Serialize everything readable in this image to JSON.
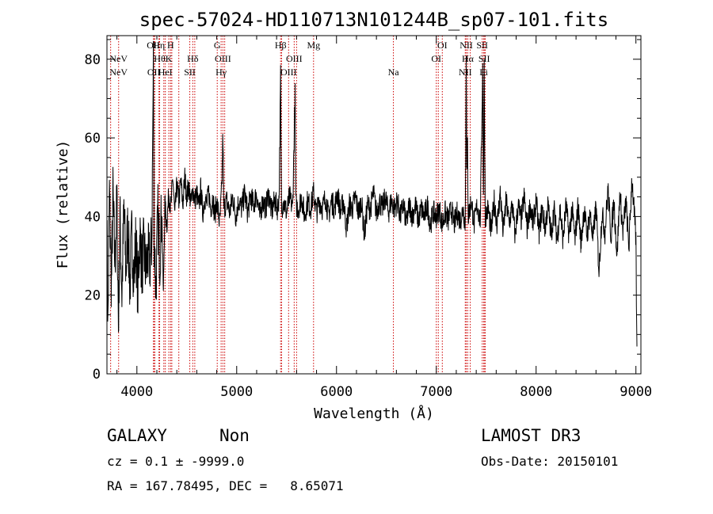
{
  "chart_data": {
    "type": "line",
    "title": "spec-57024-HD110713N101244B_sp07-101.fits",
    "xlabel": "Wavelength (Å)",
    "ylabel": "Flux (relative)",
    "xlim": [
      3700,
      9050
    ],
    "ylim": [
      0,
      86
    ],
    "x_ticks": [
      4000,
      5000,
      6000,
      7000,
      8000,
      9000
    ],
    "y_ticks": [
      0,
      20,
      40,
      60,
      80
    ],
    "grid": false,
    "line_color": "#000000",
    "marker_color": "#cc0000",
    "anchor_points": [
      [
        3700,
        38
      ],
      [
        3710,
        12
      ],
      [
        3725,
        46
      ],
      [
        3745,
        22
      ],
      [
        3760,
        45
      ],
      [
        3780,
        28
      ],
      [
        3800,
        44
      ],
      [
        3815,
        12
      ],
      [
        3830,
        40
      ],
      [
        3850,
        20
      ],
      [
        3870,
        42
      ],
      [
        3890,
        26
      ],
      [
        3910,
        38
      ],
      [
        3930,
        22
      ],
      [
        3950,
        36
      ],
      [
        3970,
        24
      ],
      [
        3990,
        34
      ],
      [
        4010,
        21
      ],
      [
        4030,
        36
      ],
      [
        4050,
        27
      ],
      [
        4070,
        32
      ],
      [
        4090,
        26
      ],
      [
        4110,
        30
      ],
      [
        4130,
        28
      ],
      [
        4150,
        34
      ],
      [
        4165,
        80
      ],
      [
        4172,
        36
      ],
      [
        4190,
        22
      ],
      [
        4210,
        40
      ],
      [
        4230,
        30
      ],
      [
        4250,
        42
      ],
      [
        4265,
        20
      ],
      [
        4280,
        43
      ],
      [
        4300,
        38
      ],
      [
        4320,
        46
      ],
      [
        4340,
        42
      ],
      [
        4360,
        50
      ],
      [
        4380,
        40
      ],
      [
        4400,
        48
      ],
      [
        4420,
        44
      ],
      [
        4440,
        49
      ],
      [
        4460,
        43
      ],
      [
        4480,
        50
      ],
      [
        4500,
        45
      ],
      [
        4520,
        48
      ],
      [
        4540,
        43
      ],
      [
        4560,
        47
      ],
      [
        4580,
        44
      ],
      [
        4600,
        46
      ],
      [
        4620,
        42
      ],
      [
        4640,
        47
      ],
      [
        4660,
        41
      ],
      [
        4680,
        45
      ],
      [
        4700,
        43
      ],
      [
        4720,
        46
      ],
      [
        4740,
        42
      ],
      [
        4760,
        45
      ],
      [
        4780,
        40
      ],
      [
        4800,
        44
      ],
      [
        4830,
        38
      ],
      [
        4850,
        47
      ],
      [
        4862,
        61
      ],
      [
        4870,
        42
      ],
      [
        4900,
        44
      ],
      [
        4930,
        41
      ],
      [
        4960,
        45
      ],
      [
        4990,
        40
      ],
      [
        5020,
        44
      ],
      [
        5050,
        42
      ],
      [
        5080,
        46
      ],
      [
        5110,
        41
      ],
      [
        5140,
        45
      ],
      [
        5170,
        43
      ],
      [
        5200,
        46
      ],
      [
        5230,
        40
      ],
      [
        5260,
        44
      ],
      [
        5290,
        42
      ],
      [
        5320,
        46
      ],
      [
        5350,
        41
      ],
      [
        5380,
        44
      ],
      [
        5410,
        42
      ],
      [
        5425,
        45
      ],
      [
        5440,
        76
      ],
      [
        5448,
        42
      ],
      [
        5470,
        44
      ],
      [
        5500,
        41
      ],
      [
        5530,
        45
      ],
      [
        5560,
        42
      ],
      [
        5585,
        71
      ],
      [
        5592,
        43
      ],
      [
        5620,
        42
      ],
      [
        5650,
        45
      ],
      [
        5680,
        40
      ],
      [
        5710,
        44
      ],
      [
        5740,
        42
      ],
      [
        5770,
        46
      ],
      [
        5800,
        41
      ],
      [
        5830,
        44
      ],
      [
        5860,
        42
      ],
      [
        5890,
        45
      ],
      [
        5920,
        40
      ],
      [
        5950,
        44
      ],
      [
        5980,
        42
      ],
      [
        6010,
        46
      ],
      [
        6040,
        41
      ],
      [
        6070,
        44
      ],
      [
        6100,
        37
      ],
      [
        6130,
        43
      ],
      [
        6160,
        42
      ],
      [
        6190,
        45
      ],
      [
        6220,
        41
      ],
      [
        6250,
        44
      ],
      [
        6280,
        35
      ],
      [
        6310,
        43
      ],
      [
        6340,
        42
      ],
      [
        6370,
        46
      ],
      [
        6400,
        41
      ],
      [
        6430,
        44
      ],
      [
        6460,
        42
      ],
      [
        6490,
        45
      ],
      [
        6520,
        41
      ],
      [
        6550,
        44
      ],
      [
        6580,
        42
      ],
      [
        6610,
        44
      ],
      [
        6640,
        40
      ],
      [
        6670,
        43
      ],
      [
        6700,
        38
      ],
      [
        6730,
        43
      ],
      [
        6760,
        40
      ],
      [
        6790,
        43
      ],
      [
        6820,
        39
      ],
      [
        6850,
        42
      ],
      [
        6880,
        40
      ],
      [
        6910,
        43
      ],
      [
        6940,
        38
      ],
      [
        6970,
        41
      ],
      [
        7000,
        40
      ],
      [
        7030,
        42
      ],
      [
        7060,
        38
      ],
      [
        7090,
        41
      ],
      [
        7120,
        39
      ],
      [
        7150,
        42
      ],
      [
        7180,
        38
      ],
      [
        7210,
        41
      ],
      [
        7240,
        39
      ],
      [
        7270,
        42
      ],
      [
        7290,
        38
      ],
      [
        7300,
        83
      ],
      [
        7306,
        46
      ],
      [
        7312,
        60
      ],
      [
        7320,
        40
      ],
      [
        7350,
        44
      ],
      [
        7380,
        38
      ],
      [
        7410,
        43
      ],
      [
        7440,
        39
      ],
      [
        7465,
        78
      ],
      [
        7472,
        45
      ],
      [
        7480,
        78
      ],
      [
        7490,
        40
      ],
      [
        7520,
        42
      ],
      [
        7550,
        36
      ],
      [
        7580,
        44
      ],
      [
        7610,
        38
      ],
      [
        7640,
        46
      ],
      [
        7670,
        36
      ],
      [
        7700,
        44
      ],
      [
        7730,
        38
      ],
      [
        7760,
        43
      ],
      [
        7790,
        35
      ],
      [
        7820,
        43
      ],
      [
        7850,
        39
      ],
      [
        7880,
        45
      ],
      [
        7910,
        37
      ],
      [
        7940,
        43
      ],
      [
        7970,
        38
      ],
      [
        8000,
        44
      ],
      [
        8030,
        36
      ],
      [
        8060,
        42
      ],
      [
        8090,
        37
      ],
      [
        8120,
        43
      ],
      [
        8150,
        35
      ],
      [
        8180,
        42
      ],
      [
        8210,
        34
      ],
      [
        8240,
        42
      ],
      [
        8270,
        34
      ],
      [
        8300,
        43
      ],
      [
        8330,
        35
      ],
      [
        8360,
        42
      ],
      [
        8390,
        34
      ],
      [
        8420,
        43
      ],
      [
        8450,
        33
      ],
      [
        8480,
        42
      ],
      [
        8510,
        35
      ],
      [
        8540,
        41
      ],
      [
        8570,
        34
      ],
      [
        8600,
        43
      ],
      [
        8630,
        26
      ],
      [
        8660,
        41
      ],
      [
        8690,
        36
      ],
      [
        8720,
        47
      ],
      [
        8750,
        35
      ],
      [
        8780,
        44
      ],
      [
        8810,
        30
      ],
      [
        8840,
        46
      ],
      [
        8870,
        36
      ],
      [
        8900,
        44
      ],
      [
        8930,
        32
      ],
      [
        8960,
        50
      ],
      [
        8990,
        38
      ],
      [
        9000,
        34
      ],
      [
        9010,
        5
      ]
    ],
    "noise": {
      "seed": 7,
      "step": 2.5,
      "amplitude_blue": 9,
      "amplitude_red": 3.2
    },
    "line_markers": [
      {
        "label": "NeV",
        "wavelength": 3817,
        "row": 1
      },
      {
        "label": "NeV",
        "wavelength": 3817,
        "row": 2
      },
      {
        "label": "OII",
        "wavelength": 4165,
        "row": 0
      },
      {
        "label": "OII",
        "wavelength": 4170,
        "row": 2
      },
      {
        "label": "Hη",
        "wavelength": 4221,
        "row": 0
      },
      {
        "label": "Hθ",
        "wavelength": 4228,
        "row": 1
      },
      {
        "label": "HeI",
        "wavelength": 4285,
        "row": 2
      },
      {
        "label": "H",
        "wavelength": 4338,
        "row": 0
      },
      {
        "label": "K",
        "wavelength": 4320,
        "row": 1
      },
      {
        "label": "SII",
        "wavelength": 4530,
        "row": 2
      },
      {
        "label": "Hδ",
        "wavelength": 4560,
        "row": 1
      },
      {
        "label": "G",
        "wavelength": 4805,
        "row": 0
      },
      {
        "label": "OIII",
        "wavelength": 4862,
        "row": 1
      },
      {
        "label": "Hγ",
        "wavelength": 4844,
        "row": 2
      },
      {
        "label": "Hβ",
        "wavelength": 5440,
        "row": 0
      },
      {
        "label": "OIII",
        "wavelength": 5576,
        "row": 1
      },
      {
        "label": "OIII",
        "wavelength": 5520,
        "row": 2
      },
      {
        "label": "Mg",
        "wavelength": 5770,
        "row": 0
      },
      {
        "label": "Na",
        "wavelength": 6570,
        "row": 2
      },
      {
        "label": "OI",
        "wavelength": 7060,
        "row": 0
      },
      {
        "label": "OI",
        "wavelength": 7000,
        "row": 1
      },
      {
        "label": "NII",
        "wavelength": 7300,
        "row": 0
      },
      {
        "label": "Hα",
        "wavelength": 7315,
        "row": 1
      },
      {
        "label": "NII",
        "wavelength": 7290,
        "row": 2
      },
      {
        "label": "SII",
        "wavelength": 7460,
        "row": 0
      },
      {
        "label": "SII",
        "wavelength": 7480,
        "row": 1
      },
      {
        "label": "Li",
        "wavelength": 7475,
        "row": 2
      }
    ],
    "extra_marker_lines": [
      3737,
      4180,
      4270,
      4350,
      4420,
      4580,
      4880,
      5450,
      5600,
      7020,
      7340,
      7490
    ]
  },
  "info": {
    "object_class": "GALAXY",
    "subclass": "Non",
    "cz_line": "cz = 0.1 ± -9999.0",
    "radec_line": "RA = 167.78495, DEC =   8.65071",
    "survey": "LAMOST DR3",
    "obs_date": "Obs-Date: 20150101"
  }
}
